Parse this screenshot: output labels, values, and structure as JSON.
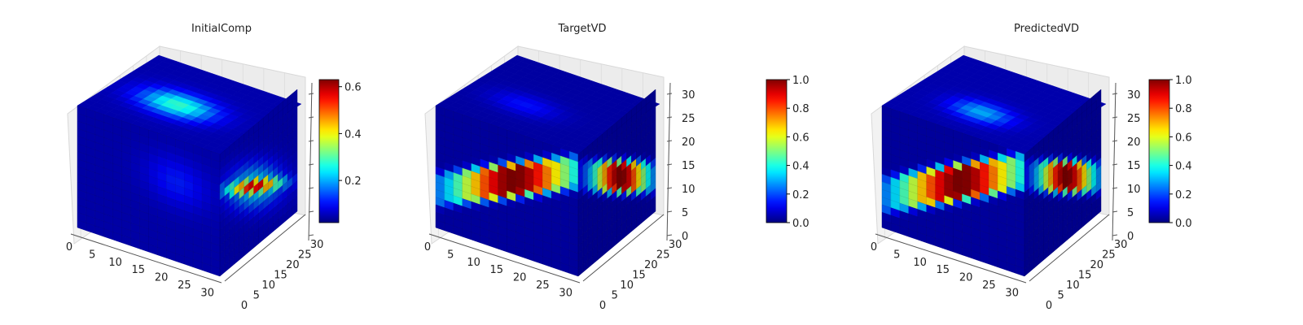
{
  "figure": {
    "background": "#ffffff"
  },
  "chart_data": [
    {
      "type": "heatmap",
      "subtype": "3d-voxel",
      "title": "InitialComp",
      "grid_size": [
        32,
        32,
        32
      ],
      "x_ticks": [
        "0",
        "5",
        "10",
        "15",
        "20",
        "25",
        "30"
      ],
      "y_ticks": [
        "0",
        "5",
        "10",
        "15",
        "20",
        "25",
        "30"
      ],
      "z_ticks": [],
      "colormap": "jet",
      "colorbar": {
        "min": 0.02,
        "max": 0.63,
        "ticks": [
          "0.2",
          "0.4",
          "0.6"
        ],
        "tick_values": [
          0.2,
          0.4,
          0.6
        ]
      },
      "features": {
        "top_blob": {
          "cx": 0.45,
          "cy": 0.45,
          "peak": 0.35
        },
        "side_bar": {
          "peak": 0.63
        }
      }
    },
    {
      "type": "heatmap",
      "subtype": "3d-voxel",
      "title": "TargetVD",
      "grid_size": [
        32,
        32,
        32
      ],
      "x_ticks": [
        "0",
        "5",
        "10",
        "15",
        "20",
        "25",
        "30"
      ],
      "y_ticks": [
        "0",
        "5",
        "10",
        "15",
        "20",
        "25",
        "30"
      ],
      "z_ticks": [
        "0",
        "5",
        "10",
        "15",
        "20",
        "25",
        "30"
      ],
      "colormap": "jet",
      "colorbar": {
        "min": 0.0,
        "max": 1.0,
        "ticks": [
          "0.0",
          "0.2",
          "0.4",
          "0.6",
          "0.8",
          "1.0"
        ],
        "tick_values": [
          0,
          0.2,
          0.4,
          0.6,
          0.8,
          1.0
        ]
      },
      "features": {
        "band_peak": 1.0
      }
    },
    {
      "type": "heatmap",
      "subtype": "3d-voxel",
      "title": "PredictedVD",
      "grid_size": [
        32,
        32,
        32
      ],
      "x_ticks": [
        "0",
        "5",
        "10",
        "15",
        "20",
        "25",
        "30"
      ],
      "y_ticks": [
        "0",
        "5",
        "10",
        "15",
        "20",
        "25",
        "30"
      ],
      "z_ticks": [
        "0",
        "5",
        "10",
        "15",
        "20",
        "25",
        "30"
      ],
      "colormap": "jet",
      "colorbar": {
        "min": 0.0,
        "max": 1.0,
        "ticks": [
          "0.0",
          "0.2",
          "0.4",
          "0.6",
          "0.8",
          "1.0"
        ],
        "tick_values": [
          0,
          0.2,
          0.4,
          0.6,
          0.8,
          1.0
        ]
      },
      "features": {
        "band_peak": 1.0
      }
    }
  ]
}
